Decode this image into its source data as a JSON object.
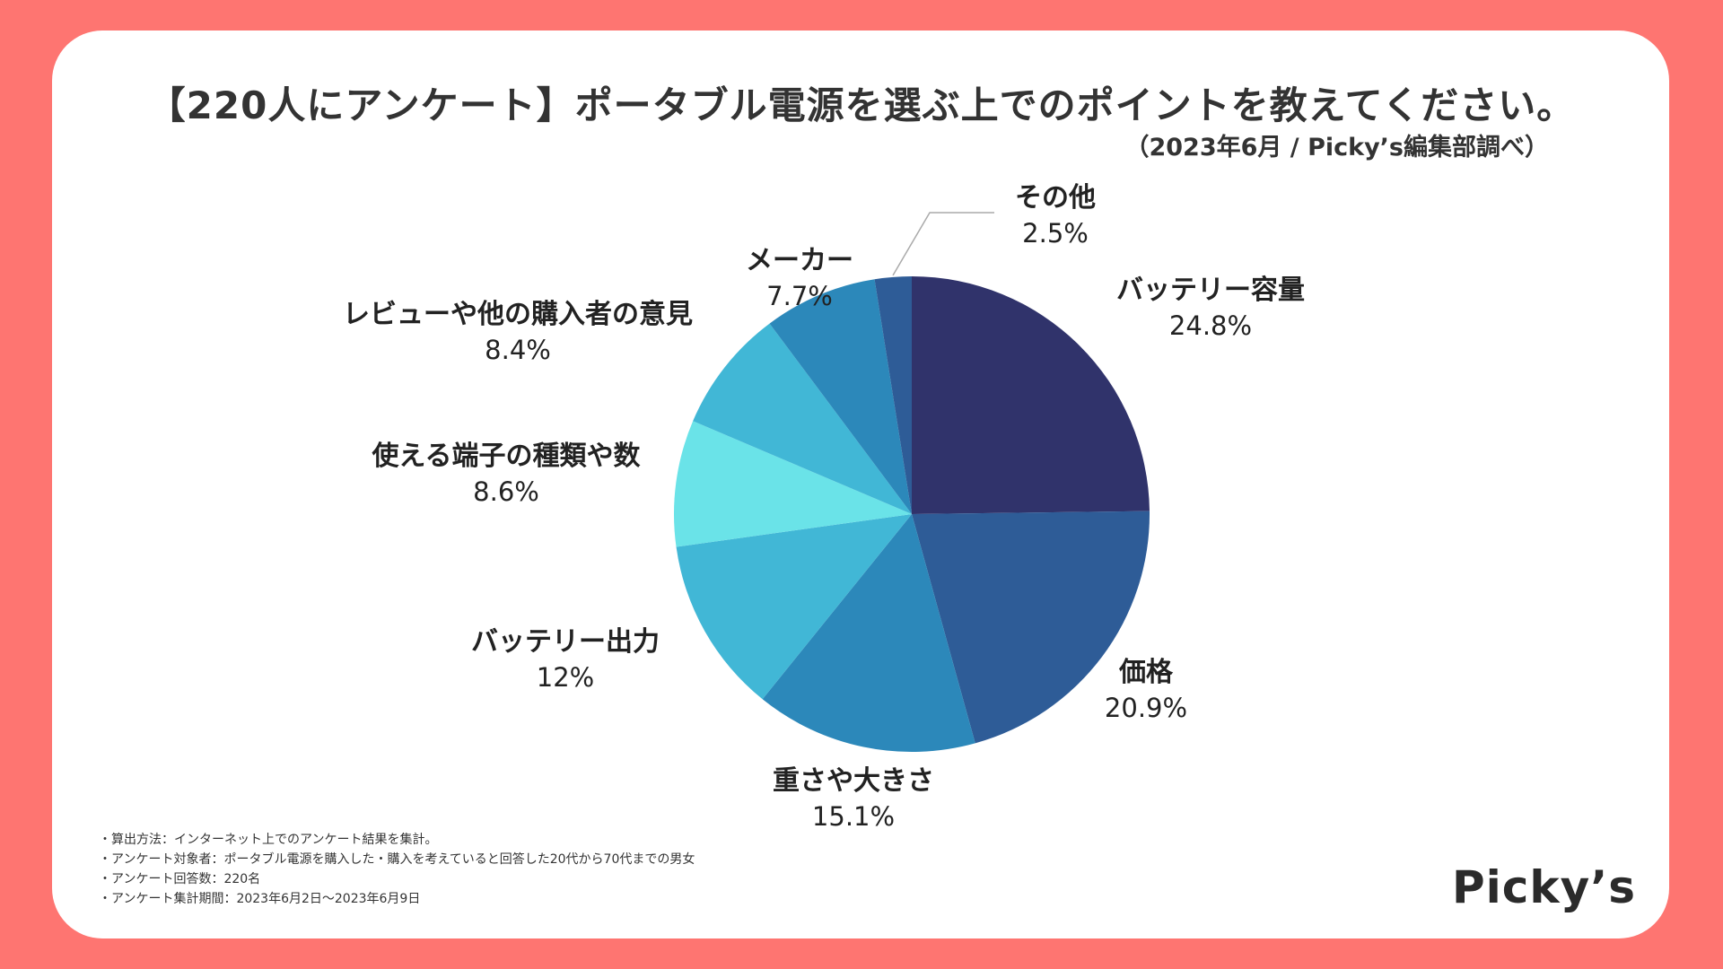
{
  "title": "【220人にアンケート】ポータブル電源を選ぶ上でのポイントを教えてください。",
  "subtitle": "（2023年6月 / Picky’s編集部調べ）",
  "chart_data": {
    "type": "pie",
    "title": "【220人にアンケート】ポータブル電源を選ぶ上でのポイントを教えてください。",
    "slices": [
      {
        "label": "バッテリー容量",
        "value": 24.8,
        "value_label": "24.8%",
        "color": "#30336b"
      },
      {
        "label": "価格",
        "value": 20.9,
        "value_label": "20.9%",
        "color": "#2e5c97"
      },
      {
        "label": "重さや大きさ",
        "value": 15.1,
        "value_label": "15.1%",
        "color": "#2c88ba"
      },
      {
        "label": "バッテリー出力",
        "value": 12,
        "value_label": "12%",
        "color": "#41b7d6"
      },
      {
        "label": "使える端子の種類や数",
        "value": 8.6,
        "value_label": "8.6%",
        "color": "#6ae3e8"
      },
      {
        "label": "レビューや他の購入者の意見",
        "value": 8.4,
        "value_label": "8.4%",
        "color": "#41b7d6"
      },
      {
        "label": "メーカー",
        "value": 7.7,
        "value_label": "7.7%",
        "color": "#2c88ba"
      },
      {
        "label": "その他",
        "value": 2.5,
        "value_label": "2.5%",
        "color": "#2e5c97"
      }
    ]
  },
  "notes": [
    "・算出方法：インターネット上でのアンケート結果を集計。",
    "・アンケート対象者：ポータブル電源を購入した・購入を考えていると回答した20代から70代までの男女",
    "・アンケート回答数：220名",
    "・アンケート集計期間：2023年6月2日〜2023年6月9日"
  ],
  "logo": "Picky’s",
  "colors": {
    "background": "#fe7571",
    "card": "#ffffff"
  }
}
